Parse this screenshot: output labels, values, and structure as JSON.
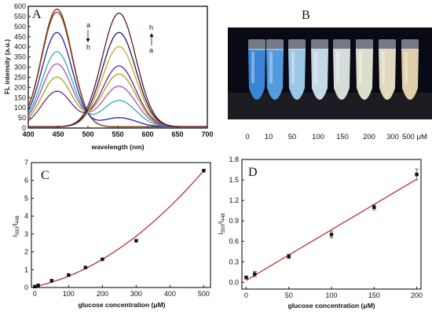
{
  "figure": {
    "panel_a": {
      "letter": "A",
      "xlabel": "wavelength (nm)",
      "ylabel": "FL intensity (a.u.)",
      "annot_left": [
        "a",
        "h"
      ],
      "annot_right": [
        "h",
        "a"
      ]
    },
    "panel_b": {
      "letter": "B",
      "concentration_labels": [
        "0",
        "10",
        "50",
        "100",
        "150",
        "200",
        "300",
        "500 μM"
      ],
      "tube_colors": [
        "#3f8fe6",
        "#57a9f0",
        "#a8d8f7",
        "#d4ecf7",
        "#e6f0ea",
        "#f0f0dc",
        "#f4eccc",
        "#f2dfb4"
      ]
    },
    "panel_c": {
      "letter": "C",
      "xlabel": "glucose concentration (μM)",
      "ylabel": "I550/I448",
      "fit_color": "#b22222"
    },
    "panel_d": {
      "letter": "D",
      "xlabel": "glucose concentration (μM)",
      "ylabel": "I550/I448",
      "fit_color": "#b22222"
    }
  },
  "chart_data": [
    {
      "panel": "A",
      "type": "line",
      "xlabel": "wavelength (nm)",
      "ylabel": "FL intensity (a.u.)",
      "xlim": [
        400,
        700
      ],
      "ylim": [
        0,
        600
      ],
      "xticks": [
        400,
        450,
        500,
        550,
        600,
        650,
        700
      ],
      "yticks": [
        0,
        50,
        100,
        150,
        200,
        250,
        300,
        350,
        400,
        450,
        500,
        550,
        600
      ],
      "series": [
        {
          "color": "#8b1a1a",
          "peak448": 580,
          "peak550": 0
        },
        {
          "color": "#7a4a1a",
          "peak448": 565,
          "peak550": 0
        },
        {
          "color": "#2222aa",
          "peak448": 465,
          "peak550": 45
        },
        {
          "color": "#3aa7b0",
          "peak448": 370,
          "peak550": 130
        },
        {
          "color": "#b050b0",
          "peak448": 310,
          "peak550": 200
        },
        {
          "color": "#9aaa22",
          "peak448": 245,
          "peak550": 260
        },
        {
          "color": "#6a2a8a",
          "peak448": 175,
          "peak550": 300
        },
        {
          "color": "#d4a020",
          "peak448": 0,
          "peak550": 395
        },
        {
          "color": "#1a1a6a",
          "peak448": 0,
          "peak550": 465
        },
        {
          "color": "#5a1a1a",
          "peak448": 0,
          "peak550": 560
        }
      ]
    },
    {
      "panel": "C",
      "type": "scatter",
      "xlabel": "glucose concentration (μM)",
      "ylabel": "I550/I448",
      "xlim": [
        -10,
        520
      ],
      "ylim": [
        0,
        7
      ],
      "xticks": [
        0,
        100,
        200,
        300,
        400,
        500
      ],
      "yticks": [
        0,
        1,
        2,
        3,
        4,
        5,
        6,
        7
      ],
      "x": [
        0,
        10,
        50,
        100,
        150,
        200,
        300,
        500
      ],
      "y": [
        0.05,
        0.12,
        0.38,
        0.7,
        1.12,
        1.58,
        2.62,
        6.55
      ],
      "fit": "quadratic"
    },
    {
      "panel": "D",
      "type": "scatter",
      "xlabel": "glucose concentration (μM)",
      "ylabel": "I550/I448",
      "xlim": [
        -5,
        205
      ],
      "ylim": [
        -0.1,
        1.8
      ],
      "xticks": [
        0,
        50,
        100,
        150,
        200
      ],
      "yticks": [
        0.0,
        0.3,
        0.6,
        0.9,
        1.2,
        1.5,
        1.8
      ],
      "ytick_labels": [
        "0.0",
        "0.3",
        "0.6",
        "0.9",
        "1.2",
        "1.5",
        "1.8"
      ],
      "x": [
        0,
        10,
        50,
        100,
        150,
        200
      ],
      "y": [
        0.07,
        0.12,
        0.38,
        0.7,
        1.1,
        1.58
      ],
      "err": [
        0.02,
        0.04,
        0.03,
        0.05,
        0.04,
        0.08
      ],
      "fit": "linear"
    }
  ]
}
